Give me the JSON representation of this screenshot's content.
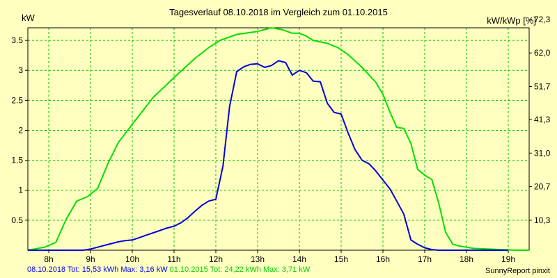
{
  "chart_data": {
    "type": "line",
    "title": "Tagesverlauf 08.10.2018 im Vergleich zum 01.10.2015",
    "ylabel": "kW",
    "y2label": "kW/kWp [%]",
    "ylim": [
      0,
      3.71
    ],
    "yticks": [
      0.5,
      1,
      1.5,
      2,
      2.5,
      3,
      3.5
    ],
    "ytick_labels": [
      "0.5",
      "1",
      "1.5",
      "2",
      "2.5",
      "3",
      "3.5"
    ],
    "y2ticks": [
      0.5,
      1.06,
      1.62,
      2.18,
      2.73,
      3.29,
      3.85
    ],
    "y2tick_labels": [
      "10,3",
      "20,7",
      "31,0",
      "41,3",
      "51,7",
      "62,0",
      "72,3"
    ],
    "xlim": [
      7.5,
      19.5
    ],
    "xticks": [
      8,
      9,
      10,
      11,
      12,
      13,
      14,
      15,
      16,
      17,
      18,
      19
    ],
    "xtick_labels": [
      "8h",
      "9h",
      "10h",
      "11h",
      "12h",
      "13h",
      "14h",
      "15h",
      "16h",
      "17h",
      "18h",
      "19h"
    ],
    "grid": true,
    "series": [
      {
        "name": "08.10.2018",
        "color": "#0000dd",
        "x": [
          7.5,
          8.5,
          8.83,
          9.0,
          9.17,
          9.33,
          9.5,
          9.67,
          9.83,
          10.0,
          10.17,
          10.33,
          10.5,
          10.67,
          10.83,
          11.0,
          11.17,
          11.33,
          11.5,
          11.67,
          11.83,
          12.0,
          12.17,
          12.33,
          12.5,
          12.67,
          12.83,
          13.0,
          13.17,
          13.33,
          13.5,
          13.67,
          13.83,
          14.0,
          14.17,
          14.33,
          14.5,
          14.67,
          14.83,
          15.0,
          15.17,
          15.33,
          15.5,
          15.67,
          15.83,
          16.0,
          16.17,
          16.33,
          16.5,
          16.67,
          16.83,
          17.0,
          17.17,
          17.33,
          17.5,
          17.67,
          17.83,
          18.0,
          18.17,
          18.33,
          18.5,
          18.67,
          18.83,
          19.0
        ],
        "values": [
          0,
          0,
          0,
          0.02,
          0.05,
          0.08,
          0.11,
          0.14,
          0.16,
          0.17,
          0.21,
          0.25,
          0.29,
          0.33,
          0.37,
          0.4,
          0.46,
          0.54,
          0.65,
          0.75,
          0.82,
          0.85,
          1.4,
          2.4,
          2.98,
          3.06,
          3.1,
          3.11,
          3.05,
          3.08,
          3.16,
          3.13,
          2.92,
          3.0,
          2.96,
          2.82,
          2.81,
          2.45,
          2.3,
          2.27,
          1.95,
          1.68,
          1.5,
          1.44,
          1.32,
          1.17,
          1.02,
          0.82,
          0.6,
          0.17,
          0.1,
          0.04,
          0.01,
          0,
          0,
          0,
          0,
          0,
          0,
          0,
          0,
          0,
          0,
          0
        ]
      },
      {
        "name": "01.10.2015",
        "color": "#00e000",
        "x": [
          7.5,
          7.9,
          8.17,
          8.42,
          8.67,
          8.92,
          9.17,
          9.42,
          9.67,
          10.0,
          10.5,
          11.0,
          11.5,
          11.83,
          12.1,
          12.5,
          13.0,
          13.33,
          13.58,
          13.83,
          14.0,
          14.17,
          14.33,
          14.67,
          14.92,
          15.17,
          15.5,
          15.83,
          16.0,
          16.17,
          16.33,
          16.5,
          16.67,
          16.83,
          17.0,
          17.17,
          17.33,
          17.5,
          17.67,
          17.83,
          18.0,
          18.17,
          18.5,
          18.83,
          19.17,
          19.5
        ],
        "values": [
          0,
          0.05,
          0.13,
          0.52,
          0.82,
          0.89,
          1.03,
          1.45,
          1.8,
          2.1,
          2.55,
          2.88,
          3.2,
          3.38,
          3.5,
          3.6,
          3.65,
          3.71,
          3.68,
          3.62,
          3.62,
          3.57,
          3.5,
          3.45,
          3.38,
          3.26,
          3.05,
          2.8,
          2.6,
          2.3,
          2.05,
          2.03,
          1.78,
          1.35,
          1.25,
          1.18,
          0.8,
          0.3,
          0.1,
          0.07,
          0.05,
          0.03,
          0.02,
          0.01,
          0,
          0
        ]
      }
    ]
  },
  "footer": {
    "series1_summary": "08.10.2018 Tot: 15,53 kWh Max: 3,16 kW",
    "series2_summary": "01.10.2015 Tot: 24,22 kWh Max: 3,71 kW",
    "credit": "SunnyReport pinxit"
  }
}
